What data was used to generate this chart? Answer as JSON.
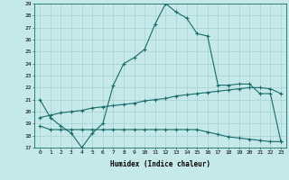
{
  "xlabel": "Humidex (Indice chaleur)",
  "xlim": [
    0,
    23
  ],
  "ylim": [
    17,
    29
  ],
  "yticks": [
    17,
    18,
    19,
    20,
    21,
    22,
    23,
    24,
    25,
    26,
    27,
    28,
    29
  ],
  "xticks": [
    0,
    1,
    2,
    3,
    4,
    5,
    6,
    7,
    8,
    9,
    10,
    11,
    12,
    13,
    14,
    15,
    16,
    17,
    18,
    19,
    20,
    21,
    22,
    23
  ],
  "bg_color": "#c5e8e8",
  "line_color": "#1a6b6b",
  "line1_x": [
    0,
    1,
    2,
    3,
    4,
    5,
    6,
    7,
    8,
    9,
    10,
    11,
    12,
    13,
    14,
    15,
    16,
    17,
    18,
    19,
    20,
    21,
    22,
    23
  ],
  "line1_y": [
    21.0,
    19.5,
    18.8,
    18.2,
    17.0,
    18.2,
    19.0,
    22.2,
    24.0,
    24.5,
    25.2,
    27.3,
    29.0,
    28.3,
    27.8,
    26.5,
    26.3,
    22.2,
    22.2,
    22.3,
    22.3,
    21.5,
    21.5,
    17.5
  ],
  "line2_x": [
    0,
    1,
    2,
    3,
    4,
    5,
    6,
    7,
    8,
    9,
    10,
    11,
    12,
    13,
    14,
    15,
    16,
    17,
    18,
    19,
    20,
    21,
    22,
    23
  ],
  "line2_y": [
    18.8,
    18.5,
    18.5,
    18.5,
    18.5,
    18.5,
    18.5,
    18.5,
    18.5,
    18.5,
    18.5,
    18.5,
    18.5,
    18.5,
    18.5,
    18.5,
    18.3,
    18.1,
    17.9,
    17.8,
    17.7,
    17.6,
    17.5,
    17.5
  ],
  "line3_x": [
    0,
    1,
    2,
    3,
    4,
    5,
    6,
    7,
    8,
    9,
    10,
    11,
    12,
    13,
    14,
    15,
    16,
    17,
    18,
    19,
    20,
    21,
    22,
    23
  ],
  "line3_y": [
    19.5,
    19.7,
    19.9,
    20.0,
    20.1,
    20.3,
    20.4,
    20.5,
    20.6,
    20.7,
    20.9,
    21.0,
    21.1,
    21.3,
    21.4,
    21.5,
    21.6,
    21.7,
    21.8,
    21.9,
    22.0,
    22.0,
    21.9,
    21.5
  ]
}
